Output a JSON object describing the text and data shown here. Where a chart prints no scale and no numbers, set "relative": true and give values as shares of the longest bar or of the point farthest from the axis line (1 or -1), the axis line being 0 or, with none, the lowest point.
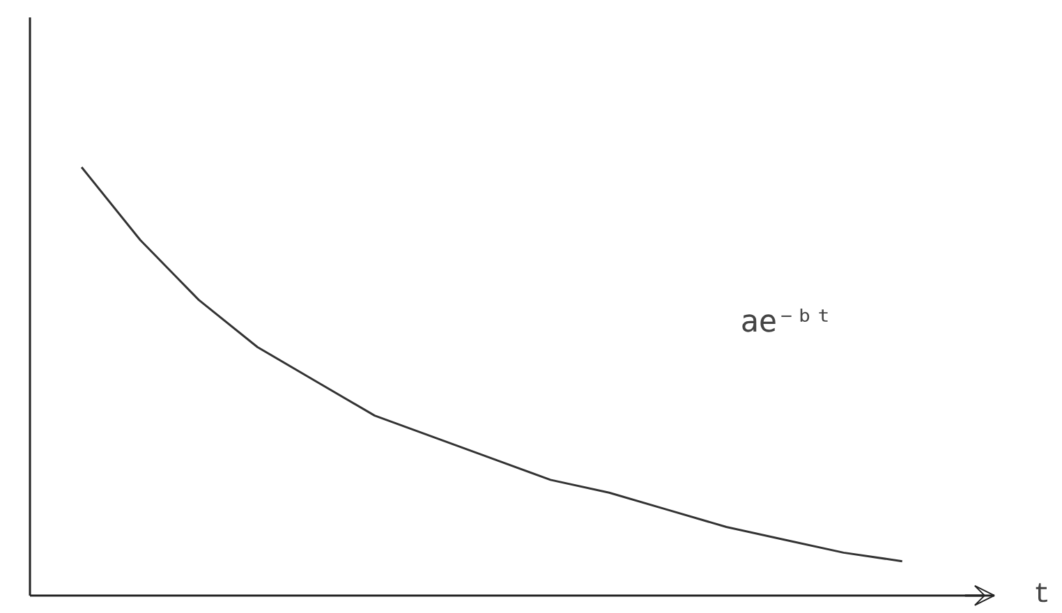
{
  "chart_data": {
    "type": "line",
    "relative": true,
    "xlabel": "t",
    "annotations": [
      "ae⁻ᵇᵗ"
    ],
    "categories": [
      null,
      null,
      null,
      null,
      null,
      null,
      null,
      null,
      null,
      null,
      null,
      null,
      null,
      null,
      null
    ],
    "series": [
      {
        "color": "#333333",
        "values": [
          1.0,
          0.83,
          0.69,
          0.58,
          0.5,
          0.42,
          0.37,
          0.32,
          0.27,
          0.24,
          0.2,
          0.16,
          0.13,
          0.1,
          0.08
        ]
      }
    ],
    "grid": false
  }
}
